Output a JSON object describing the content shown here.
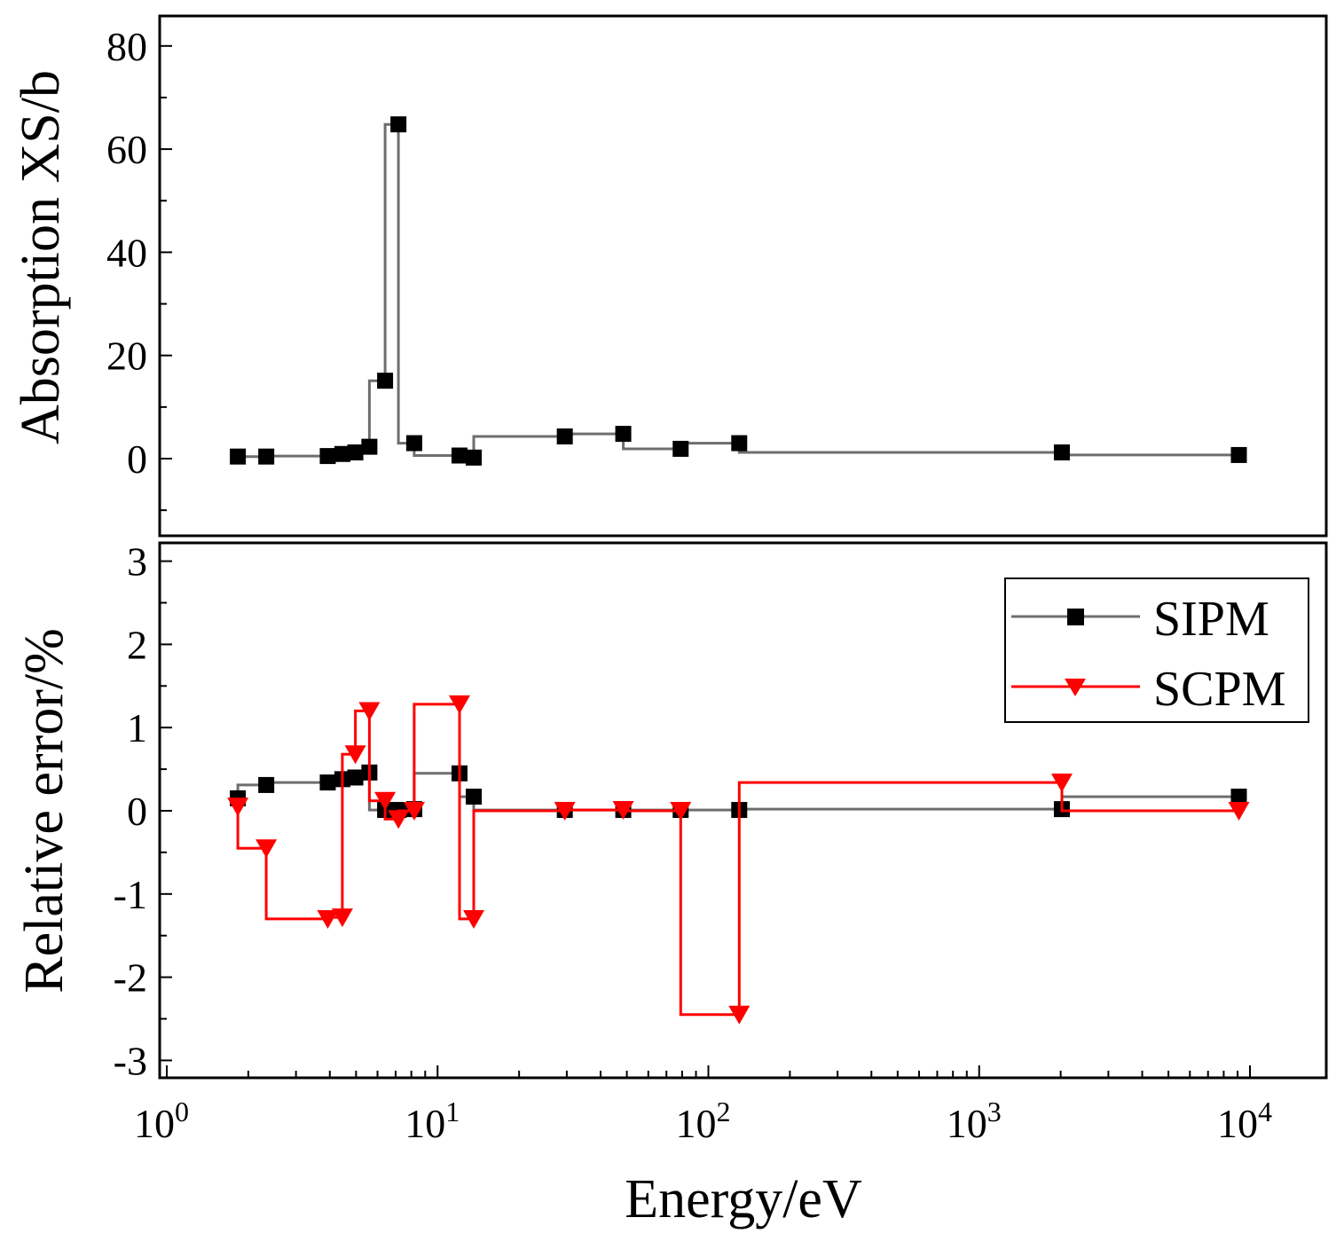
{
  "chart_data": [
    {
      "type": "line",
      "panel": "top",
      "ylabel": "Absorption XS/b",
      "xlabel": "",
      "xscale": "log",
      "xlim": [
        1,
        20000
      ],
      "ylim": [
        -15,
        82
      ],
      "yticks": [
        0,
        20,
        40,
        60,
        80
      ],
      "yticks_labels": [
        "0",
        "20",
        "40",
        "60",
        "80"
      ],
      "step": "pre",
      "series": [
        {
          "name": "SIPM",
          "color": "#6e6e6e",
          "marker": "square",
          "x": [
            1.83,
            2.33,
            3.93,
            4.45,
            4.97,
            5.6,
            6.4,
            7.17,
            8.2,
            12.05,
            13.6,
            29.5,
            48.5,
            79.0,
            130.0,
            2020.0,
            9100.0
          ],
          "y": [
            0.4,
            0.4,
            0.5,
            0.9,
            1.2,
            2.3,
            15.1,
            64.8,
            3.0,
            0.6,
            0.2,
            4.3,
            4.8,
            1.9,
            3.0,
            1.2,
            0.7
          ]
        }
      ]
    },
    {
      "type": "line",
      "panel": "bottom",
      "ylabel": "Relative error/%",
      "xlabel": "Energy/eV",
      "xscale": "log",
      "xlim": [
        1,
        20000
      ],
      "ylim": [
        -3.2,
        3.2
      ],
      "yticks": [
        -3,
        -2,
        -1,
        0,
        1,
        2,
        3
      ],
      "yticks_labels": [
        "-3",
        "-2",
        "-1",
        "0",
        "1",
        "2",
        "3"
      ],
      "xticks_base": "10",
      "xticks_exponents": [
        "0",
        "1",
        "2",
        "3",
        "4"
      ],
      "step": "pre",
      "legend_position": "top-right",
      "series": [
        {
          "name": "SIPM",
          "color": "#6e6e6e",
          "marker": "square",
          "x": [
            1.83,
            2.33,
            3.93,
            4.45,
            4.97,
            5.6,
            6.4,
            7.17,
            8.2,
            12.05,
            13.6,
            29.5,
            48.5,
            79.0,
            130.0,
            2020.0,
            9100.0
          ],
          "y": [
            0.15,
            0.31,
            0.34,
            0.38,
            0.4,
            0.46,
            0.01,
            0.01,
            0.02,
            0.45,
            0.17,
            0.01,
            0.01,
            0.01,
            0.01,
            0.02,
            0.17
          ]
        },
        {
          "name": "SCPM",
          "color": "#ff0000",
          "marker": "triangle-down",
          "x": [
            1.83,
            2.33,
            3.93,
            4.45,
            4.97,
            5.6,
            6.4,
            7.17,
            8.2,
            12.05,
            13.6,
            29.5,
            48.5,
            79.0,
            130.0,
            2020.0,
            9100.0
          ],
          "y": [
            0.05,
            -0.45,
            -1.3,
            -1.28,
            0.68,
            1.2,
            0.12,
            -0.1,
            0.0,
            1.28,
            -1.3,
            0.0,
            0.01,
            0.0,
            -2.45,
            0.34,
            0.0
          ]
        }
      ]
    }
  ]
}
